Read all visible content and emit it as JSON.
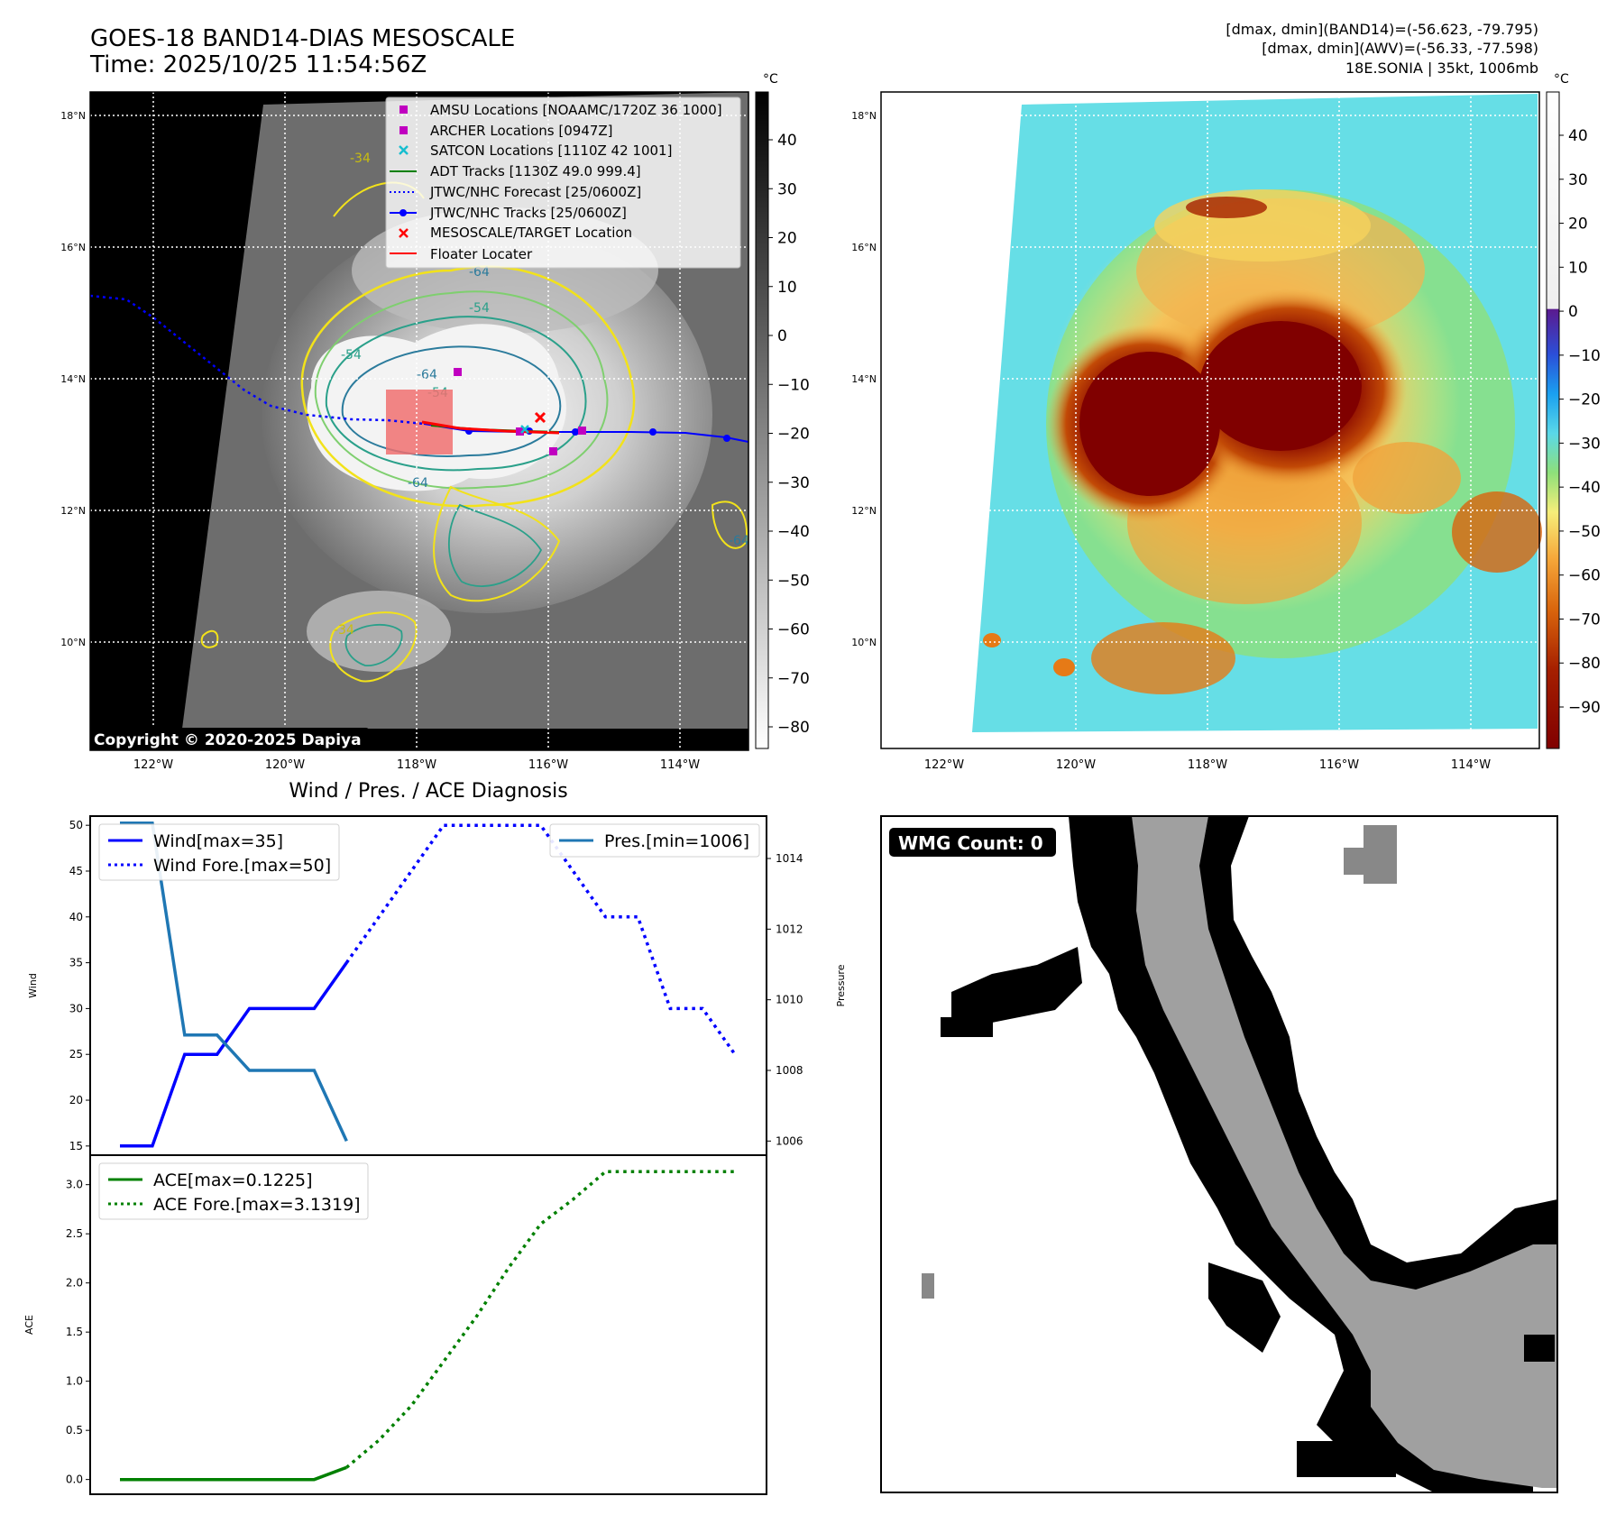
{
  "header": {
    "title_line1": "GOES-18 BAND14-DIAS MESOSCALE",
    "title_line2": "Time: 2025/10/25 11:54:56Z",
    "info_line1": "[dmax, dmin](BAND14)=(-56.623, -79.795)",
    "info_line2": "[dmax, dmin](AWV)=(-56.33, -77.598)",
    "info_line3": "18E.SONIA | 35kt, 1006mb"
  },
  "map_axes": {
    "lat_labels": [
      "18°N",
      "16°N",
      "14°N",
      "12°N",
      "10°N"
    ],
    "lon_labels": [
      "122°W",
      "120°W",
      "118°W",
      "116°W",
      "114°W"
    ]
  },
  "colorbar_left": {
    "unit": "°C",
    "ticks": [
      "40",
      "30",
      "20",
      "10",
      "0",
      "−10",
      "−20",
      "−30",
      "−40",
      "−50",
      "−60",
      "−70",
      "−80"
    ]
  },
  "colorbar_right": {
    "unit": "°C",
    "ticks": [
      "40",
      "30",
      "20",
      "10",
      "0",
      "−10",
      "−20",
      "−30",
      "−40",
      "−50",
      "−60",
      "−70",
      "−80",
      "−90"
    ]
  },
  "map_legend": [
    {
      "label": "AMSU Locations [NOAAMC/1720Z 36 1000]",
      "color": "#c000c0",
      "marker": "square"
    },
    {
      "label": "ARCHER Locations [0947Z]",
      "color": "#c000c0",
      "marker": "square"
    },
    {
      "label": "SATCON Locations [1110Z 42 1001]",
      "color": "#17becf",
      "marker": "x"
    },
    {
      "label": "ADT Tracks [1130Z 49.0 999.4]",
      "color": "#008000",
      "marker": "line"
    },
    {
      "label": "JTWC/NHC Forecast [25/0600Z]",
      "color": "#0000ff",
      "marker": "dotted"
    },
    {
      "label": "JTWC/NHC Tracks [25/0600Z]",
      "color": "#0000ff",
      "marker": "line-dot"
    },
    {
      "label": "MESOSCALE/TARGET Location",
      "color": "#ff0000",
      "marker": "x"
    },
    {
      "label": "Floater Locater",
      "color": "#ff0000",
      "marker": "line"
    }
  ],
  "contour_labels": [
    "-64",
    "-54",
    "-54",
    "-64",
    "-54",
    "-64",
    "-34",
    "-34",
    "-64"
  ],
  "copyright": "Copyright © 2020-2025 Dapiya",
  "wmg": {
    "label": "WMG Count: 0"
  },
  "chart_data": [
    {
      "type": "line",
      "title": "Wind / Pres. / ACE Diagnosis",
      "ylabel": "Wind",
      "ylabel_right": "Pressure",
      "ylim": [
        14,
        51
      ],
      "ylim_right": [
        1005.6,
        1015.2
      ],
      "yticks": [
        15,
        20,
        25,
        30,
        35,
        40,
        45,
        50
      ],
      "yticks_right": [
        1006,
        1008,
        1010,
        1012,
        1014
      ],
      "series": [
        {
          "name": "Wind[max=35]",
          "axis": "left",
          "style": "solid",
          "color": "#0000ff",
          "x": [
            0,
            1,
            2,
            3,
            4,
            5,
            6,
            7
          ],
          "y": [
            15,
            15,
            25,
            25,
            30,
            30,
            30,
            35
          ]
        },
        {
          "name": "Wind Fore.[max=50]",
          "axis": "left",
          "style": "dotted",
          "color": "#0000ff",
          "x": [
            7,
            8,
            9,
            10,
            11,
            12,
            13,
            14,
            15,
            16,
            17,
            18,
            19
          ],
          "y": [
            35,
            40,
            45,
            50,
            50,
            50,
            50,
            45,
            40,
            40,
            30,
            30,
            25
          ]
        },
        {
          "name": "Pres.[min=1006]",
          "axis": "right",
          "style": "solid",
          "color": "#1f77b4",
          "x": [
            0,
            1,
            2,
            3,
            4,
            5,
            6,
            7
          ],
          "y": [
            1015,
            1015,
            1009,
            1009,
            1008,
            1008,
            1008,
            1006
          ]
        }
      ],
      "legend": [
        "top-left",
        "top-right"
      ]
    },
    {
      "type": "line",
      "ylabel": "ACE",
      "ylim": [
        -0.15,
        3.3
      ],
      "yticks": [
        0.0,
        0.5,
        1.0,
        1.5,
        2.0,
        2.5,
        3.0
      ],
      "series": [
        {
          "name": "ACE[max=0.1225]",
          "style": "solid",
          "color": "#008000",
          "x": [
            0,
            1,
            2,
            3,
            4,
            5,
            6,
            7
          ],
          "y": [
            0,
            0,
            0,
            0,
            0,
            0,
            0,
            0.1225
          ]
        },
        {
          "name": "ACE Fore.[max=3.1319]",
          "style": "dotted",
          "color": "#008000",
          "x": [
            7,
            8,
            9,
            10,
            11,
            12,
            13,
            14,
            15,
            16,
            17,
            18,
            19
          ],
          "y": [
            0.1225,
            0.4,
            0.75,
            1.2,
            1.65,
            2.15,
            2.6,
            2.85,
            3.1319,
            3.1319,
            3.1319,
            3.1319,
            3.1319
          ]
        }
      ],
      "legend": "top-left"
    }
  ]
}
